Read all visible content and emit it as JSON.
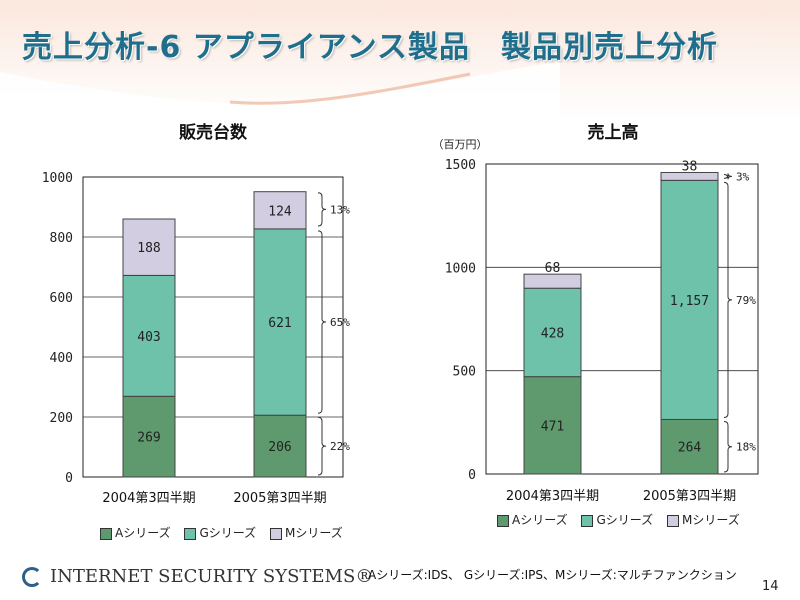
{
  "title": "売上分析-6 アプライアンス製品　製品別売上分析",
  "colors": {
    "a_series": "#5f9a6e",
    "g_series": "#6fc2aa",
    "m_series": "#d2cde0",
    "title": "#1f6e8c"
  },
  "legend": [
    "Aシリーズ",
    "Gシリーズ",
    "Mシリーズ"
  ],
  "footer": {
    "logo_text": "INTERNET SECURITY SYSTEMS®",
    "note": "Aシリーズ:IDS、 Gシリーズ:IPS、Mシリーズ:マルチファンクション",
    "page_number": "14"
  },
  "chart_data": [
    {
      "type": "bar",
      "stacked": true,
      "title": "販売台数",
      "unit": "",
      "categories": [
        "2004第3四半期",
        "2005第3四半期"
      ],
      "series": [
        {
          "name": "Aシリーズ",
          "values": [
            269,
            206
          ],
          "labels": [
            "269",
            "206"
          ]
        },
        {
          "name": "Gシリーズ",
          "values": [
            403,
            621
          ],
          "labels": [
            "403",
            "621"
          ]
        },
        {
          "name": "Mシリーズ",
          "values": [
            188,
            124
          ],
          "labels": [
            "188",
            "124"
          ]
        }
      ],
      "ylim": [
        0,
        1000
      ],
      "yticks": [
        0,
        200,
        400,
        600,
        800,
        1000
      ],
      "grid": true,
      "share_annotations": [
        {
          "label": "13%",
          "from": 830,
          "to": 954
        },
        {
          "label": "65%",
          "from": 206,
          "to": 827
        },
        {
          "label": "22%",
          "from": 0,
          "to": 206
        }
      ],
      "share_bar_index": 1
    },
    {
      "type": "bar",
      "stacked": true,
      "title": "売上高",
      "unit": "（百万円）",
      "categories": [
        "2004第3四半期",
        "2005第3四半期"
      ],
      "series": [
        {
          "name": "Aシリーズ",
          "values": [
            471,
            264
          ],
          "labels": [
            "471",
            "264"
          ]
        },
        {
          "name": "Gシリーズ",
          "values": [
            428,
            1157
          ],
          "labels": [
            "428",
            "1,157"
          ]
        },
        {
          "name": "Mシリーズ",
          "values": [
            68,
            38
          ],
          "labels": [
            "68",
            "38"
          ]
        }
      ],
      "ylim": [
        0,
        1500
      ],
      "yticks": [
        0,
        500,
        1000,
        1500
      ],
      "grid": true,
      "share_annotations": [
        {
          "label": "3%",
          "from": 1421,
          "to": 1459
        },
        {
          "label": "79%",
          "from": 264,
          "to": 1421
        },
        {
          "label": "18%",
          "from": 0,
          "to": 264
        }
      ],
      "share_bar_index": 1
    }
  ]
}
